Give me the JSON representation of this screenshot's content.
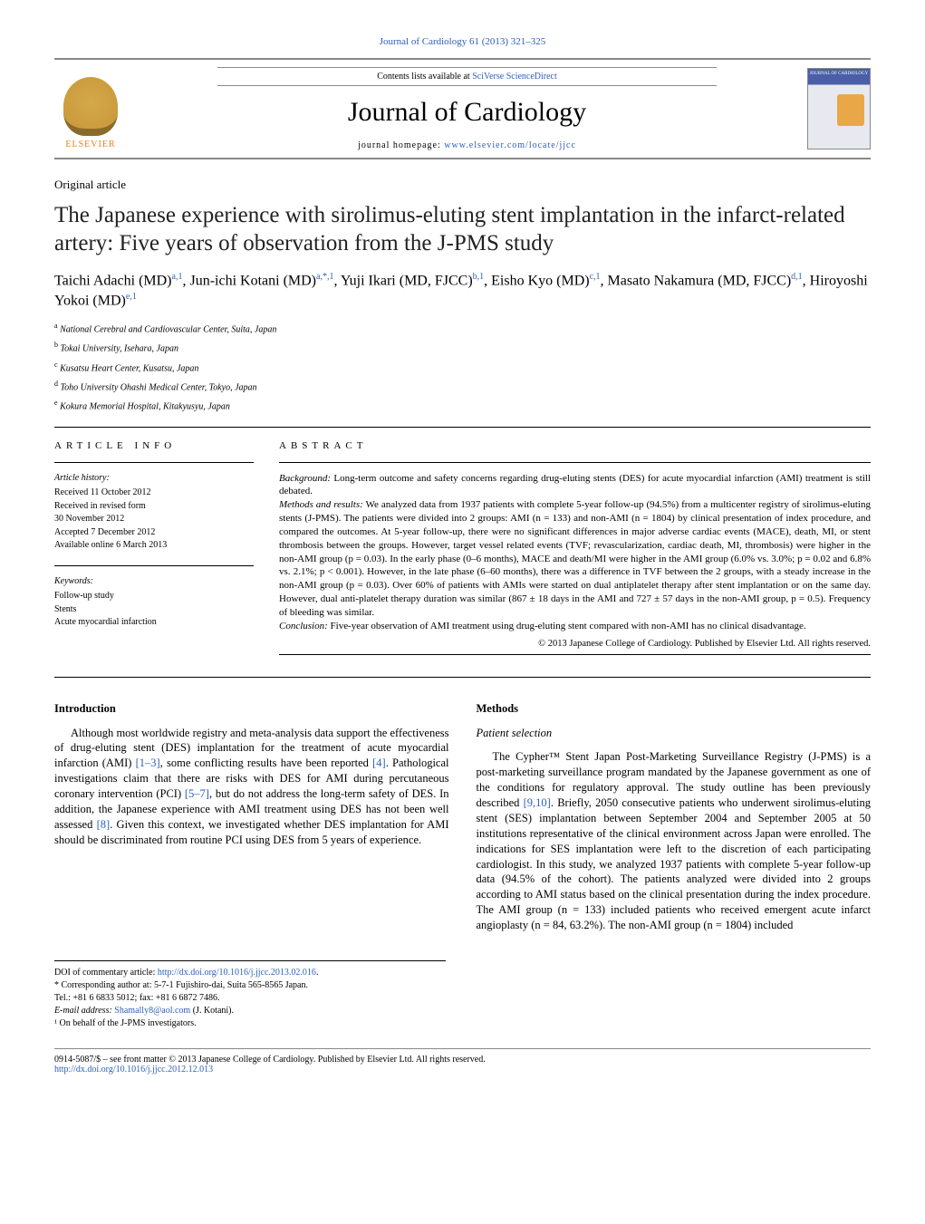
{
  "header": {
    "journal_ref": "Journal of Cardiology 61 (2013) 321–325",
    "contents_prefix": "Contents lists available at ",
    "contents_link": "SciVerse ScienceDirect",
    "journal_name": "Journal of Cardiology",
    "homepage_prefix": "journal homepage: ",
    "homepage_link": "www.elsevier.com/locate/jjcc",
    "publisher": "ELSEVIER",
    "cover_label": "JOURNAL OF CARDIOLOGY"
  },
  "article": {
    "type": "Original article",
    "title": "The Japanese experience with sirolimus-eluting stent implantation in the infarct-related artery: Five years of observation from the J-PMS study",
    "authors_html": "Taichi Adachi (MD)<sup>a,1</sup>, Jun-ichi Kotani (MD)<sup>a,*,1</sup>, Yuji Ikari (MD, FJCC)<sup>b,1</sup>, Eisho Kyo (MD)<sup>c,1</sup>, Masato Nakamura (MD, FJCC)<sup>d,1</sup>, Hiroyoshi Yokoi (MD)<sup>e,1</sup>",
    "affiliations": [
      {
        "sup": "a",
        "text": "National Cerebral and Cardiovascular Center, Suita, Japan"
      },
      {
        "sup": "b",
        "text": "Tokai University, Isehara, Japan"
      },
      {
        "sup": "c",
        "text": "Kusatsu Heart Center, Kusatsu, Japan"
      },
      {
        "sup": "d",
        "text": "Toho University Ohashi Medical Center, Tokyo, Japan"
      },
      {
        "sup": "e",
        "text": "Kokura Memorial Hospital, Kitakyusyu, Japan"
      }
    ]
  },
  "info": {
    "heading": "ARTICLE INFO",
    "history_label": "Article history:",
    "history": [
      "Received 11 October 2012",
      "Received in revised form",
      "30 November 2012",
      "Accepted 7 December 2012",
      "Available online 6 March 2013"
    ],
    "keywords_label": "Keywords:",
    "keywords": [
      "Follow-up study",
      "Stents",
      "Acute myocardial infarction"
    ]
  },
  "abstract": {
    "heading": "ABSTRACT",
    "background_label": "Background:",
    "background": " Long-term outcome and safety concerns regarding drug-eluting stents (DES) for acute myocardial infarction (AMI) treatment is still debated.",
    "methods_label": "Methods and results:",
    "methods": " We analyzed data from 1937 patients with complete 5-year follow-up (94.5%) from a multicenter registry of sirolimus-eluting stents (J-PMS). The patients were divided into 2 groups: AMI (n = 133) and non-AMI (n = 1804) by clinical presentation of index procedure, and compared the outcomes. At 5-year follow-up, there were no significant differences in major adverse cardiac events (MACE), death, MI, or stent thrombosis between the groups. However, target vessel related events (TVF; revascularization, cardiac death, MI, thrombosis) were higher in the non-AMI group (p = 0.03). In the early phase (0–6 months), MACE and death/MI were higher in the AMI group (6.0% vs. 3.0%; p = 0.02 and 6.8% vs. 2.1%; p < 0.001). However, in the late phase (6–60 months), there was a difference in TVF between the 2 groups, with a steady increase in the non-AMI group (p = 0.03). Over 60% of patients with AMIs were started on dual antiplatelet therapy after stent implantation or on the same day. However, dual anti-platelet therapy duration was similar (867 ± 18 days in the AMI and 727 ± 57 days in the non-AMI group, p = 0.5). Frequency of bleeding was similar.",
    "conclusion_label": "Conclusion:",
    "conclusion": " Five-year observation of AMI treatment using drug-eluting stent compared with non-AMI has no clinical disadvantage.",
    "copyright": "© 2013 Japanese College of Cardiology. Published by Elsevier Ltd. All rights reserved."
  },
  "body": {
    "intro_heading": "Introduction",
    "intro_para": "Although most worldwide registry and meta-analysis data support the effectiveness of drug-eluting stent (DES) implantation for the treatment of acute myocardial infarction (AMI) [1–3], some conflicting results have been reported [4]. Pathological investigations claim that there are risks with DES for AMI during percutaneous coronary intervention (PCI) [5–7], but do not address the long-term safety of DES. In addition, the Japanese experience with AMI treatment using DES has not been well assessed [8]. Given this context, we investigated whether DES implantation for AMI should be discriminated from routine PCI using DES from 5 years of experience.",
    "methods_heading": "Methods",
    "patient_sel_heading": "Patient selection",
    "methods_para": "The Cypher™ Stent Japan Post-Marketing Surveillance Registry (J-PMS) is a post-marketing surveillance program mandated by the Japanese government as one of the conditions for regulatory approval. The study outline has been previously described [9,10]. Briefly, 2050 consecutive patients who underwent sirolimus-eluting stent (SES) implantation between September 2004 and September 2005 at 50 institutions representative of the clinical environment across Japan were enrolled. The indications for SES implantation were left to the discretion of each participating cardiologist. In this study, we analyzed 1937 patients with complete 5-year follow-up data (94.5% of the cohort). The patients analyzed were divided into 2 groups according to AMI status based on the clinical presentation during the index procedure. The AMI group (n = 133) included patients who received emergent acute infarct angioplasty (n = 84, 63.2%). The non-AMI group (n = 1804) included",
    "cite_refs": {
      "r1_3": "[1–3]",
      "r4": "[4]",
      "r5_7": "[5–7]",
      "r8": "[8]",
      "r9_10": "[9,10]"
    }
  },
  "footnotes": {
    "doi_label": "DOI of commentary article: ",
    "doi_link": "http://dx.doi.org/10.1016/j.jjcc.2013.02.016",
    "doi_suffix": ".",
    "corr_label": "* Corresponding author at: 5-7-1 Fujishiro-dai, Suita 565-8565 Japan.",
    "tel": "Tel.: +81 6 6833 5012; fax: +81 6 6872 7486.",
    "email_label": "E-mail address: ",
    "email": "Shamally8@aol.com",
    "email_suffix": " (J. Kotani).",
    "note1": "¹ On behalf of the J-PMS investigators."
  },
  "footer": {
    "line1": "0914-5087/$ – see front matter © 2013 Japanese College of Cardiology. Published by Elsevier Ltd. All rights reserved.",
    "doi": "http://dx.doi.org/10.1016/j.jjcc.2012.12.013"
  },
  "colors": {
    "link": "#2b5fb8",
    "publisher": "#e8801a",
    "rule": "#888888",
    "text": "#000000"
  }
}
